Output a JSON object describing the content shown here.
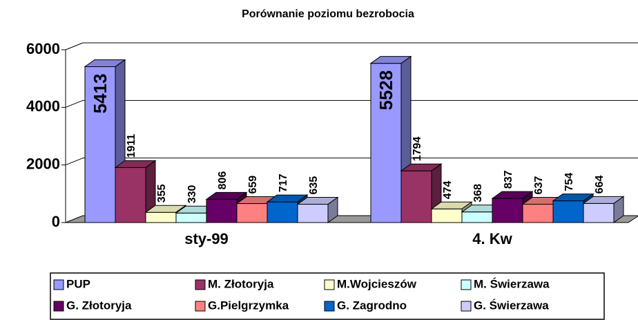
{
  "chart_data": {
    "type": "bar3d",
    "title": "Porównanie poziomu bezrobocia",
    "categories": [
      "sty-99",
      "4. Kw"
    ],
    "ylim": [
      0,
      6000
    ],
    "yticks": [
      0,
      2000,
      4000,
      6000
    ],
    "grid": true,
    "series": [
      {
        "name": "PUP",
        "color": "#9999ff",
        "values": [
          5413,
          5528
        ]
      },
      {
        "name": "M. Złotoryja",
        "color": "#993366",
        "values": [
          1911,
          1794
        ]
      },
      {
        "name": "M.Wojcieszów",
        "color": "#ffffcc",
        "values": [
          355,
          474
        ]
      },
      {
        "name": "M. Świerzawa",
        "color": "#ccffff",
        "values": [
          330,
          368
        ]
      },
      {
        "name": "G. Złotoryja",
        "color": "#660066",
        "values": [
          806,
          837
        ]
      },
      {
        "name": "G.Pielgrzymka",
        "color": "#ff8080",
        "values": [
          659,
          637
        ]
      },
      {
        "name": "G. Zagrodno",
        "color": "#0066cc",
        "values": [
          717,
          754
        ]
      },
      {
        "name": "G. Świerzawa",
        "color": "#ccccff",
        "values": [
          635,
          664
        ]
      }
    ]
  }
}
